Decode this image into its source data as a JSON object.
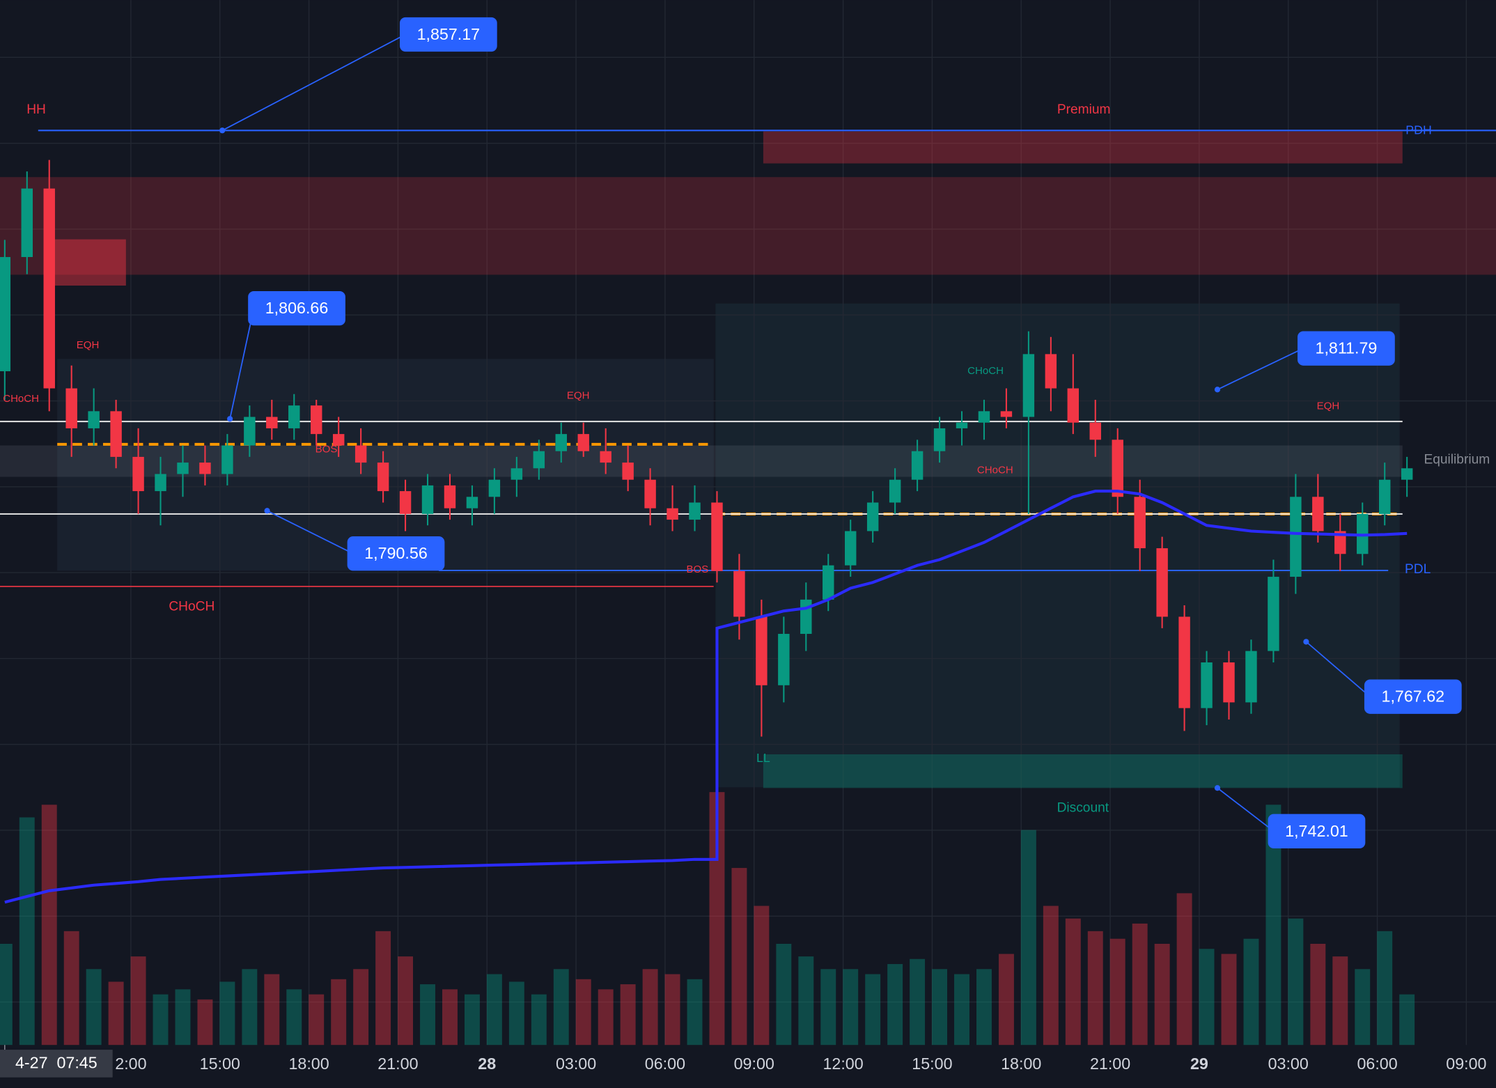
{
  "chart_data": {
    "type": "candlestick",
    "x": [
      7.75,
      8.5,
      9.25,
      10,
      10.75,
      11.5,
      12.25,
      13,
      13.75,
      14.5,
      15.25,
      16,
      16.75,
      17.5,
      18.25,
      19,
      19.75,
      20.5,
      21.25,
      22,
      22.75,
      23.5,
      24.25,
      25,
      25.75,
      26.5,
      27.25,
      28,
      28.75,
      29.5,
      30.25,
      31,
      31.75,
      32.5,
      33.25,
      34,
      34.75,
      35.5,
      36.25,
      37,
      37.75,
      38.5,
      39.25,
      40,
      40.75,
      41.5,
      42.25,
      43,
      43.75,
      44.5,
      45.25,
      46,
      46.75,
      47.5,
      48.25,
      49,
      49.75,
      50.5,
      51.25,
      52,
      52.75,
      53.5,
      54.25,
      55
    ],
    "open": [
      1815,
      1835,
      1847,
      1812,
      1805,
      1808,
      1800,
      1794,
      1797,
      1799,
      1797,
      1802,
      1807,
      1805,
      1809,
      1804,
      1802,
      1799,
      1794,
      1790,
      1795,
      1791,
      1793,
      1796,
      1798,
      1801,
      1804,
      1801,
      1799,
      1796,
      1791,
      1789,
      1792,
      1780,
      1772,
      1760,
      1769,
      1775,
      1781,
      1787,
      1792,
      1796,
      1801,
      1805,
      1806,
      1808,
      1807,
      1818,
      1812,
      1806,
      1803,
      1793,
      1784,
      1772,
      1756,
      1764,
      1757,
      1766,
      1779,
      1793,
      1787,
      1783,
      1790,
      1796
    ],
    "high": [
      1838,
      1850,
      1852,
      1816,
      1812,
      1810,
      1805,
      1800,
      1802,
      1802,
      1804,
      1809,
      1810,
      1811,
      1810,
      1807,
      1805,
      1801,
      1796,
      1797,
      1797,
      1795,
      1798,
      1800,
      1803,
      1806,
      1806,
      1805,
      1802,
      1798,
      1795,
      1795,
      1794,
      1783,
      1775,
      1772,
      1778,
      1783,
      1789,
      1794,
      1798,
      1803,
      1807,
      1808,
      1810,
      1812,
      1822,
      1821,
      1818,
      1810,
      1805,
      1796,
      1786,
      1774,
      1766,
      1766,
      1768,
      1782,
      1797,
      1797,
      1790,
      1792,
      1799,
      1800
    ],
    "low": [
      1810,
      1832,
      1808,
      1800,
      1802,
      1798,
      1790,
      1788,
      1793,
      1795,
      1795,
      1800,
      1803,
      1803,
      1802,
      1800,
      1797,
      1792,
      1787,
      1788,
      1789,
      1788,
      1790,
      1793,
      1796,
      1799,
      1800,
      1797,
      1794,
      1788,
      1787,
      1787,
      1778,
      1768,
      1751,
      1757,
      1766,
      1773,
      1779,
      1785,
      1790,
      1794,
      1799,
      1802,
      1803,
      1805,
      1790,
      1808,
      1804,
      1800,
      1790,
      1780,
      1770,
      1752,
      1753,
      1754,
      1755,
      1764,
      1776,
      1785,
      1780,
      1781,
      1788,
      1793
    ],
    "close": [
      1835,
      1847,
      1812,
      1805,
      1808,
      1800,
      1794,
      1797,
      1799,
      1797,
      1802,
      1807,
      1805,
      1809,
      1804,
      1802,
      1799,
      1794,
      1790,
      1795,
      1791,
      1793,
      1796,
      1798,
      1801,
      1804,
      1801,
      1799,
      1796,
      1791,
      1789,
      1792,
      1780,
      1772,
      1760,
      1769,
      1775,
      1781,
      1787,
      1792,
      1796,
      1801,
      1805,
      1806,
      1808,
      1807,
      1818,
      1812,
      1806,
      1803,
      1793,
      1784,
      1772,
      1756,
      1764,
      1757,
      1766,
      1779,
      1793,
      1787,
      1783,
      1790,
      1796,
      1798
    ],
    "volume": [
      40,
      90,
      95,
      45,
      30,
      25,
      35,
      20,
      22,
      18,
      25,
      30,
      28,
      22,
      20,
      26,
      30,
      45,
      35,
      24,
      22,
      20,
      28,
      25,
      20,
      30,
      26,
      22,
      24,
      30,
      28,
      26,
      100,
      70,
      55,
      40,
      35,
      30,
      30,
      28,
      32,
      34,
      30,
      28,
      30,
      36,
      85,
      55,
      50,
      45,
      42,
      48,
      40,
      60,
      38,
      36,
      42,
      95,
      50,
      40,
      35,
      30,
      45,
      20
    ],
    "vwap": [
      1722,
      1723,
      1724,
      1724.5,
      1725,
      1725.3,
      1725.6,
      1726,
      1726.2,
      1726.4,
      1726.6,
      1726.8,
      1727,
      1727.2,
      1727.4,
      1727.6,
      1727.8,
      1728,
      1728.1,
      1728.2,
      1728.3,
      1728.4,
      1728.5,
      1728.6,
      1728.7,
      1728.8,
      1728.9,
      1729,
      1729.1,
      1729.2,
      1729.3,
      1729.5,
      1770,
      1771,
      1772,
      1773,
      1773.5,
      1775,
      1777,
      1778,
      1779.5,
      1781,
      1782,
      1783.5,
      1785,
      1787,
      1789,
      1791,
      1793,
      1794,
      1794,
      1793.5,
      1792,
      1790,
      1788,
      1787.5,
      1787,
      1786.8,
      1786.6,
      1786.5,
      1786.4,
      1786.3,
      1786.4,
      1786.6
    ],
    "up_color": "#089981",
    "down_color": "#f23645",
    "vwap_color": "#2b2bff",
    "xlim": [
      7.59,
      58
    ],
    "ylim": [
      1697,
      1880
    ],
    "vlim": [
      0,
      100
    ],
    "grid": true,
    "xticks": [
      {
        "value": 12,
        "label": "2:00"
      },
      {
        "value": 15,
        "label": "15:00"
      },
      {
        "value": 18,
        "label": "18:00"
      },
      {
        "value": 21,
        "label": "21:00"
      },
      {
        "value": 24,
        "label": "28"
      },
      {
        "value": 27,
        "label": "03:00"
      },
      {
        "value": 30,
        "label": "06:00"
      },
      {
        "value": 33,
        "label": "09:00"
      },
      {
        "value": 36,
        "label": "12:00"
      },
      {
        "value": 39,
        "label": "15:00"
      },
      {
        "value": 42,
        "label": "18:00"
      },
      {
        "value": 45,
        "label": "21:00"
      },
      {
        "value": 48,
        "label": "29"
      },
      {
        "value": 51,
        "label": "03:00"
      },
      {
        "value": 54,
        "label": "06:00"
      },
      {
        "value": 57,
        "label": "09:00"
      }
    ],
    "crosshair": {
      "value": 7.75,
      "label": "4-27  07:45"
    },
    "price_labels": [
      {
        "value": 1857.17,
        "label": "1,857.17"
      },
      {
        "value": 1806.66,
        "label": "1,806.66"
      },
      {
        "value": 1790.56,
        "label": "1,790.56"
      },
      {
        "value": 1811.79,
        "label": "1,811.79"
      },
      {
        "value": 1767.62,
        "label": "1,767.62"
      },
      {
        "value": 1742.01,
        "label": "1,742.01"
      }
    ],
    "levels": [
      1857.17,
      1780.1,
      1777.3,
      1802.2,
      1790.0,
      1806.2,
      1790.0
    ],
    "zones": [
      [
        1849.0,
        1831.9
      ],
      [
        1857.0,
        1851.4
      ],
      [
        1838.1,
        1830.0
      ],
      [
        1747.9,
        1742.0
      ],
      [
        1802.0,
        1796.5
      ]
    ],
    "annotations": [
      "HH",
      "Premium",
      "PDH",
      "EQH",
      "CHoCH",
      "BOS",
      "EQH",
      "CHoCH",
      "BOS",
      "CHoCH",
      "CHoCH",
      "EQH",
      "Equilibrium",
      "PDL",
      "LL",
      "Discount"
    ]
  }
}
